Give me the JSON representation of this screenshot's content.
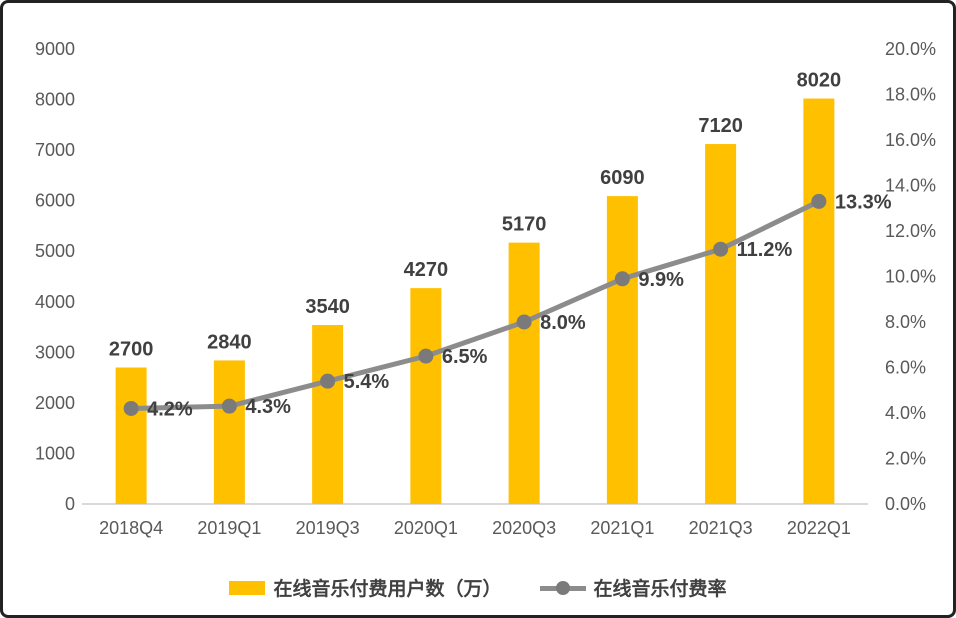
{
  "chart_data": {
    "type": "bar",
    "subtype": "combo-bar-line",
    "title": "",
    "xlabel": "",
    "ylabel": "",
    "grid": false,
    "legend_position": "bottom",
    "categories": [
      "2018Q4",
      "2019Q1",
      "2019Q3",
      "2020Q1",
      "2020Q3",
      "2021Q1",
      "2021Q3",
      "2022Q1"
    ],
    "series": [
      {
        "name": "在线音乐付费用户数（万）",
        "type": "bar",
        "axis": "left",
        "values": [
          2700,
          2840,
          3540,
          4270,
          5170,
          6090,
          7120,
          8020
        ],
        "labels": [
          "2700",
          "2840",
          "3540",
          "4270",
          "5170",
          "6090",
          "7120",
          "8020"
        ],
        "color": "#FFC000"
      },
      {
        "name": "在线音乐付费率",
        "type": "line",
        "axis": "right",
        "values": [
          4.2,
          4.3,
          5.4,
          6.5,
          8.0,
          9.9,
          11.2,
          13.3
        ],
        "labels": [
          "4.2%",
          "4.3%",
          "5.4%",
          "6.5%",
          "8.0%",
          "9.9%",
          "11.2%",
          "13.3%"
        ],
        "color": "#8C8C8C"
      }
    ],
    "left_axis": {
      "min": 0,
      "max": 9000,
      "ticks": [
        "0",
        "1000",
        "2000",
        "3000",
        "4000",
        "5000",
        "6000",
        "7000",
        "8000",
        "9000"
      ]
    },
    "right_axis": {
      "min": 0,
      "max": 20,
      "ticks": [
        "0.0%",
        "2.0%",
        "4.0%",
        "6.0%",
        "8.0%",
        "10.0%",
        "12.0%",
        "14.0%",
        "16.0%",
        "18.0%",
        "20.0%"
      ]
    },
    "colors": {
      "bar": "#FFC000",
      "line": "#8C8C8C",
      "marker": "#7A7A7A",
      "data_label": "#404040",
      "axis_label": "#595959",
      "axis_line": "#D9D9D9",
      "background": "#FFFFFF",
      "border": "#222222"
    }
  }
}
